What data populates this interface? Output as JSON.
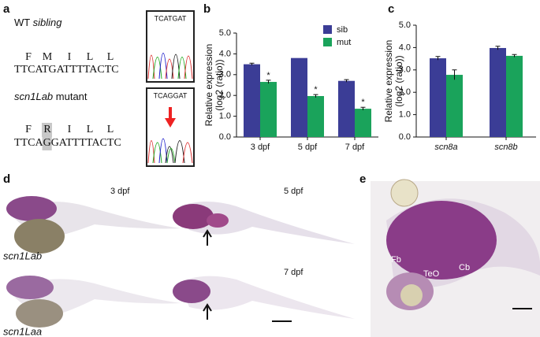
{
  "panel_labels": [
    "a",
    "b",
    "c",
    "d",
    "e"
  ],
  "sequence": {
    "wt_label_plain": "WT ",
    "wt_label_italic": "sibling",
    "wt_protein": [
      "F",
      "M",
      "I",
      "L",
      "L"
    ],
    "wt_dna": "TTCATGATTTTACTC",
    "wt_trace": "TCATGAT",
    "mut_label_italic": "scn1Lab",
    "mut_label_plain": " mutant",
    "mut_protein": [
      "F",
      "R",
      "I",
      "L",
      "L"
    ],
    "mut_dna_before": "TTCA",
    "mut_dna_changed": "G",
    "mut_dna_after": "GATTTTACTC",
    "mut_trace": "TCAGGAT"
  },
  "chart_data": [
    {
      "type": "bar",
      "ylabel": [
        "Relative expression",
        "(log2 (ratio))"
      ],
      "categories": [
        "3 dpf",
        "5 dpf",
        "7 dpf"
      ],
      "series": [
        {
          "name": "sib",
          "color": "#3b3d96",
          "values": [
            3.5,
            3.8,
            2.7
          ],
          "errors": [
            0.05,
            0.0,
            0.06
          ]
        },
        {
          "name": "mut",
          "color": "#1aa35b",
          "values": [
            2.65,
            1.97,
            1.36
          ],
          "errors": [
            0.08,
            0.07,
            0.07
          ],
          "markers": [
            "*",
            "*",
            "*"
          ]
        }
      ],
      "ylim": [
        0,
        5
      ],
      "yticks": [
        {
          "value": 0,
          "label": "0.0"
        },
        {
          "value": 1,
          "label": "1.0"
        },
        {
          "value": 2,
          "label": "2.0"
        },
        {
          "value": 3,
          "label": "3.0"
        },
        {
          "value": 4,
          "label": "4.0"
        },
        {
          "value": 5,
          "label": "5.0"
        }
      ],
      "legend": "top-right"
    },
    {
      "type": "bar",
      "ylabel": [
        "Relative expression",
        "(log2 (ratio))"
      ],
      "categories": [
        "scn8a",
        "scn8b"
      ],
      "series": [
        {
          "color": "#3b3d96",
          "values": [
            3.52,
            3.98
          ],
          "errors": [
            0.08,
            0.08
          ]
        },
        {
          "color": "#1aa35b",
          "values": [
            2.78,
            3.63
          ],
          "errors": [
            0.22,
            0.06
          ]
        }
      ],
      "ylim": [
        0,
        5
      ],
      "yticks": [
        {
          "value": 0,
          "label": "0.0"
        },
        {
          "value": 1,
          "label": "1.0"
        },
        {
          "value": 2,
          "label": "2.0"
        },
        {
          "value": 3,
          "label": "3.0"
        },
        {
          "value": 4,
          "label": "4.0"
        },
        {
          "value": 5,
          "label": "5.0"
        }
      ]
    }
  ],
  "images": {
    "d": {
      "labels": [
        "3 dpf",
        "5 dpf",
        "scn1Lab",
        "7 dpf",
        "scn1Laa"
      ]
    },
    "e": {
      "labels": [
        "Fb",
        "TeO",
        "Cb"
      ]
    }
  }
}
